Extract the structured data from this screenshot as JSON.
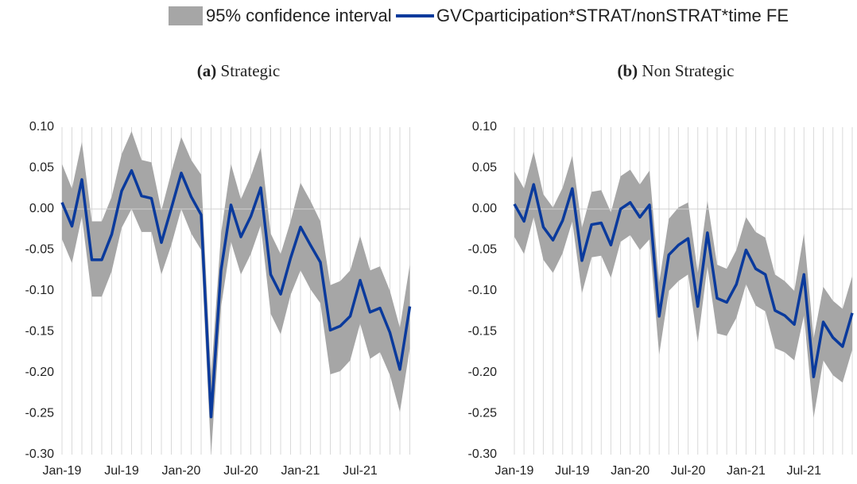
{
  "chart_data": [
    {
      "type": "line",
      "panel": "(a)",
      "title": "Strategic",
      "categories": [
        "Jan-19",
        null,
        null,
        null,
        null,
        null,
        "Jul-19",
        null,
        null,
        null,
        null,
        null,
        "Jan-20",
        null,
        null,
        null,
        null,
        null,
        "Jul-20",
        null,
        null,
        null,
        null,
        null,
        "Jan-21",
        null,
        null,
        null,
        null,
        null,
        "Jul-21",
        null,
        null,
        null,
        null,
        null
      ],
      "ylim": [
        -0.3,
        0.1
      ],
      "yticks": [
        {
          "value": 0.1,
          "label": "0.10"
        },
        {
          "value": 0.05,
          "label": "0.05"
        },
        {
          "value": 0,
          "label": "0.00"
        },
        {
          "value": -0.05,
          "label": "-0.05"
        },
        {
          "value": -0.1,
          "label": "-0.10"
        },
        {
          "value": -0.15,
          "label": "-0.15"
        },
        {
          "value": -0.2,
          "label": "-0.20"
        },
        {
          "value": -0.25,
          "label": "-0.25"
        },
        {
          "value": -0.3,
          "label": "-0.30"
        }
      ],
      "series": [
        {
          "name": "95% confidence interval",
          "color": "#a6a6a6",
          "upper": [
            0.055,
            0.025,
            0.082,
            -0.015,
            -0.015,
            0.015,
            0.067,
            0.095,
            0.06,
            0.057,
            -0.002,
            0.045,
            0.088,
            0.06,
            0.042,
            -0.205,
            -0.03,
            0.055,
            0.012,
            0.04,
            0.075,
            -0.03,
            -0.055,
            -0.015,
            0.032,
            0.01,
            -0.015,
            -0.093,
            -0.088,
            -0.075,
            -0.033,
            -0.075,
            -0.07,
            -0.1,
            -0.145,
            -0.068
          ],
          "lower": [
            -0.037,
            -0.066,
            -0.009,
            -0.107,
            -0.107,
            -0.076,
            -0.023,
            0.0,
            -0.028,
            -0.028,
            -0.08,
            -0.044,
            0.0,
            -0.03,
            -0.05,
            -0.3,
            -0.12,
            -0.04,
            -0.08,
            -0.055,
            -0.02,
            -0.128,
            -0.153,
            -0.105,
            -0.075,
            -0.098,
            -0.115,
            -0.202,
            -0.198,
            -0.185,
            -0.14,
            -0.183,
            -0.175,
            -0.203,
            -0.248,
            -0.17
          ]
        },
        {
          "name": "GVCparticipation*STRAT/nonSTRAT*time FE",
          "color": "#0a3a9c",
          "values": [
            0.008,
            -0.021,
            0.036,
            -0.062,
            -0.062,
            -0.031,
            0.022,
            0.047,
            0.016,
            0.013,
            -0.041,
            0.001,
            0.044,
            0.015,
            -0.007,
            -0.254,
            -0.075,
            0.005,
            -0.034,
            -0.009,
            0.026,
            -0.08,
            -0.104,
            -0.06,
            -0.022,
            -0.044,
            -0.065,
            -0.148,
            -0.143,
            -0.131,
            -0.087,
            -0.126,
            -0.121,
            -0.151,
            -0.196,
            -0.119
          ]
        }
      ]
    },
    {
      "type": "line",
      "panel": "(b)",
      "title": "Non Strategic",
      "categories": [
        "Jan-19",
        null,
        null,
        null,
        null,
        null,
        "Jul-19",
        null,
        null,
        null,
        null,
        null,
        "Jan-20",
        null,
        null,
        null,
        null,
        null,
        "Jul-20",
        null,
        null,
        null,
        null,
        null,
        "Jan-21",
        null,
        null,
        null,
        null,
        null,
        "Jul-21",
        null,
        null,
        null,
        null,
        null
      ],
      "ylim": [
        -0.3,
        0.1
      ],
      "yticks": [
        {
          "value": 0.1,
          "label": "0.10"
        },
        {
          "value": 0.05,
          "label": "0.05"
        },
        {
          "value": 0,
          "label": "0.00"
        },
        {
          "value": -0.05,
          "label": "-0.05"
        },
        {
          "value": -0.1,
          "label": "-0.10"
        },
        {
          "value": -0.15,
          "label": "-0.15"
        },
        {
          "value": -0.2,
          "label": "-0.20"
        },
        {
          "value": -0.25,
          "label": "-0.25"
        },
        {
          "value": -0.3,
          "label": "-0.30"
        }
      ],
      "series": [
        {
          "color": "#a6a6a6",
          "upper": [
            0.046,
            0.025,
            0.07,
            0.018,
            0.002,
            0.026,
            0.065,
            -0.023,
            0.021,
            0.023,
            -0.004,
            0.04,
            0.048,
            0.03,
            0.047,
            -0.09,
            -0.012,
            0.002,
            0.008,
            -0.078,
            0.01,
            -0.068,
            -0.073,
            -0.05,
            -0.01,
            -0.028,
            -0.035,
            -0.08,
            -0.088,
            -0.1,
            -0.03,
            -0.158,
            -0.095,
            -0.112,
            -0.122,
            -0.082
          ],
          "lower": [
            -0.034,
            -0.055,
            -0.01,
            -0.062,
            -0.078,
            -0.054,
            -0.015,
            -0.103,
            -0.059,
            -0.057,
            -0.084,
            -0.04,
            -0.032,
            -0.05,
            -0.037,
            -0.178,
            -0.1,
            -0.088,
            -0.08,
            -0.163,
            -0.07,
            -0.152,
            -0.155,
            -0.133,
            -0.092,
            -0.118,
            -0.125,
            -0.17,
            -0.175,
            -0.185,
            -0.13,
            -0.255,
            -0.185,
            -0.203,
            -0.212,
            -0.172
          ]
        },
        {
          "color": "#0a3a9c",
          "values": [
            0.006,
            -0.015,
            0.03,
            -0.022,
            -0.038,
            -0.014,
            0.025,
            -0.063,
            -0.019,
            -0.017,
            -0.044,
            0.0,
            0.008,
            -0.01,
            0.005,
            -0.131,
            -0.056,
            -0.044,
            -0.036,
            -0.119,
            -0.029,
            -0.109,
            -0.114,
            -0.092,
            -0.05,
            -0.073,
            -0.08,
            -0.124,
            -0.13,
            -0.141,
            -0.08,
            -0.205,
            -0.138,
            -0.157,
            -0.168,
            -0.127
          ]
        }
      ]
    }
  ]
}
